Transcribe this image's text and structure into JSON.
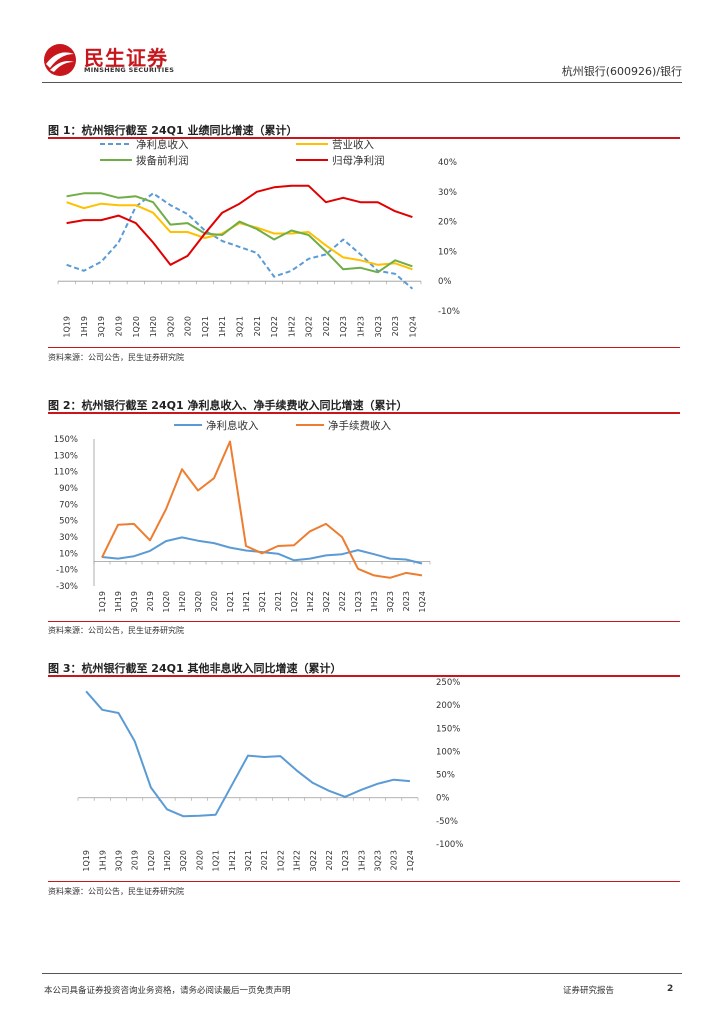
{
  "header": {
    "brand_cn": "民生证券",
    "brand_en": "MINSHENG SECURITIES",
    "company": "杭州银行(600926)/银行"
  },
  "figures": [
    {
      "title": "图 1：杭州银行截至 24Q1 业绩同比增速（累计）",
      "source": "资料来源：公司公告，民生证券研究院"
    },
    {
      "title": "图 2：杭州银行截至 24Q1 净利息收入、净手续费收入同比增速（累计）",
      "source": "资料来源：公司公告，民生证券研究院"
    },
    {
      "title": "图 3：杭州银行截至 24Q1 其他非息收入同比增速（累计）",
      "source": "资料来源：公司公告，民生证券研究院"
    }
  ],
  "chart_data": [
    {
      "type": "line",
      "categories": [
        "1Q19",
        "1H19",
        "3Q19",
        "2019",
        "1Q20",
        "1H20",
        "3Q20",
        "2020",
        "1Q21",
        "1H21",
        "3Q21",
        "2021",
        "1Q22",
        "1H22",
        "3Q22",
        "2022",
        "1Q23",
        "1H23",
        "3Q23",
        "2023",
        "1Q24"
      ],
      "ylim": [
        -0.1,
        0.4
      ],
      "yticks": [
        "40%",
        "30%",
        "20%",
        "10%",
        "0%",
        "-10%"
      ],
      "legend": "top, two columns",
      "series": [
        {
          "name": "净利息收入",
          "color": "#5b9bd5",
          "dashed": true,
          "values": [
            0.055,
            0.035,
            0.065,
            0.13,
            0.25,
            0.295,
            0.255,
            0.225,
            0.17,
            0.135,
            0.115,
            0.095,
            0.015,
            0.035,
            0.075,
            0.09,
            0.14,
            0.09,
            0.035,
            0.025,
            -0.025
          ]
        },
        {
          "name": "营业收入",
          "color": "#ffc000",
          "dashed": false,
          "values": [
            0.265,
            0.245,
            0.26,
            0.255,
            0.255,
            0.23,
            0.165,
            0.165,
            0.145,
            0.16,
            0.195,
            0.18,
            0.16,
            0.16,
            0.165,
            0.12,
            0.08,
            0.07,
            0.055,
            0.06,
            0.04
          ]
        },
        {
          "name": "拨备前利润",
          "color": "#70ad47",
          "dashed": false,
          "values": [
            0.285,
            0.295,
            0.295,
            0.28,
            0.285,
            0.265,
            0.19,
            0.195,
            0.16,
            0.155,
            0.2,
            0.175,
            0.14,
            0.17,
            0.155,
            0.1,
            0.04,
            0.045,
            0.03,
            0.07,
            0.05
          ]
        },
        {
          "name": "归母净利润",
          "color": "#e00000",
          "dashed": false,
          "values": [
            0.195,
            0.205,
            0.205,
            0.22,
            0.195,
            0.13,
            0.055,
            0.085,
            0.16,
            0.23,
            0.26,
            0.3,
            0.315,
            0.32,
            0.32,
            0.265,
            0.28,
            0.265,
            0.265,
            0.235,
            0.215
          ]
        }
      ]
    },
    {
      "type": "line",
      "categories": [
        "1Q19",
        "1H19",
        "3Q19",
        "2019",
        "1Q20",
        "1H20",
        "3Q20",
        "2020",
        "1Q21",
        "1H21",
        "3Q21",
        "2021",
        "1Q22",
        "1H22",
        "3Q22",
        "2022",
        "1Q23",
        "1H23",
        "3Q23",
        "2023",
        "1Q24"
      ],
      "ylim": [
        -0.3,
        1.5
      ],
      "yticks": [
        "150%",
        "130%",
        "110%",
        "90%",
        "70%",
        "50%",
        "30%",
        "10%",
        "-10%",
        "-30%"
      ],
      "legend": "top",
      "series": [
        {
          "name": "净利息收入",
          "color": "#5b9bd5",
          "dashed": false,
          "values": [
            0.055,
            0.035,
            0.065,
            0.13,
            0.25,
            0.295,
            0.255,
            0.225,
            0.17,
            0.135,
            0.115,
            0.095,
            0.015,
            0.035,
            0.075,
            0.09,
            0.14,
            0.09,
            0.035,
            0.025,
            -0.025
          ]
        },
        {
          "name": "净手续费收入",
          "color": "#ed7d31",
          "dashed": false,
          "values": [
            0.05,
            0.45,
            0.46,
            0.26,
            0.64,
            1.13,
            0.87,
            1.02,
            1.47,
            0.19,
            0.1,
            0.19,
            0.2,
            0.37,
            0.46,
            0.3,
            -0.09,
            -0.17,
            -0.2,
            -0.14,
            -0.17
          ]
        }
      ]
    },
    {
      "type": "line",
      "categories": [
        "1Q19",
        "1H19",
        "3Q19",
        "2019",
        "1Q20",
        "1H20",
        "3Q20",
        "2020",
        "1Q21",
        "1H21",
        "3Q21",
        "2021",
        "1Q22",
        "1H22",
        "3Q22",
        "2022",
        "1Q23",
        "1H23",
        "3Q23",
        "2023",
        "1Q24"
      ],
      "ylim": [
        -1.0,
        2.5
      ],
      "yticks": [
        "250%",
        "200%",
        "150%",
        "100%",
        "50%",
        "0%",
        "-50%",
        "-100%"
      ],
      "series": [
        {
          "name": "",
          "color": "#5b9bd5",
          "dashed": false,
          "values": [
            2.3,
            1.9,
            1.83,
            1.22,
            0.22,
            -0.25,
            -0.4,
            -0.39,
            -0.37,
            0.27,
            0.91,
            0.88,
            0.9,
            0.59,
            0.32,
            0.15,
            0.02,
            0.17,
            0.3,
            0.39,
            0.36
          ]
        }
      ]
    }
  ],
  "footer": {
    "disclaimer": "本公司具备证券投资咨询业务资格，请务必阅读最后一页免责声明",
    "report_type": "证券研究报告",
    "page": "2"
  }
}
